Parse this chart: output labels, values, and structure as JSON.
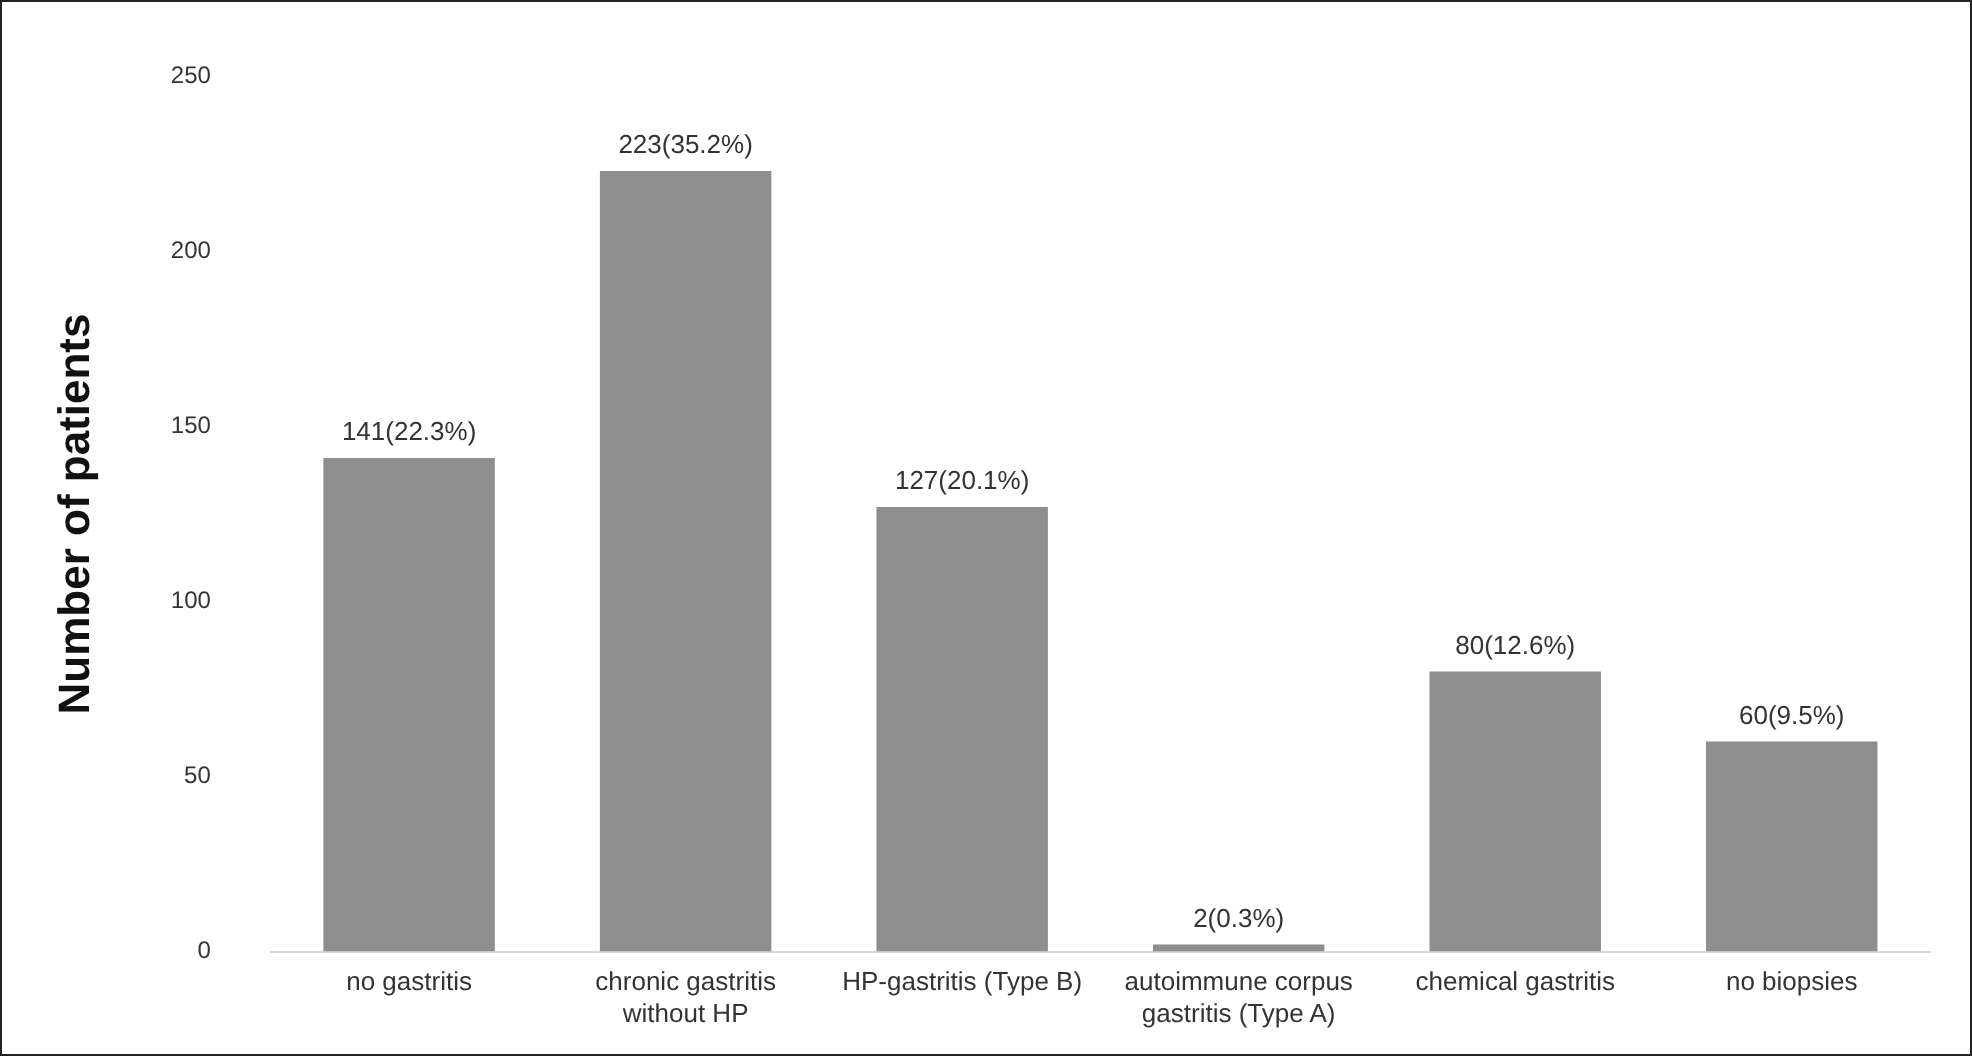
{
  "chart_data": {
    "type": "bar",
    "ylabel": "Number of patients",
    "categories": [
      "no gastritis",
      "chronic gastritis without HP",
      "HP-gastritis (Type B)",
      "autoimmune corpus gastritis (Type A)",
      "chemical gastritis",
      "no biopsies"
    ],
    "values": [
      141,
      223,
      127,
      2,
      80,
      60
    ],
    "value_labels": [
      "141(22.3%)",
      "223(35.2%)",
      "127(20.1%)",
      "2(0.3%)",
      "80(12.6%)",
      "60(9.5%)"
    ],
    "color": "#8e8e8e",
    "ylim": [
      0,
      250
    ],
    "yticks": [
      0,
      50,
      100,
      150,
      200,
      250
    ],
    "grid": false,
    "legend": false
  }
}
